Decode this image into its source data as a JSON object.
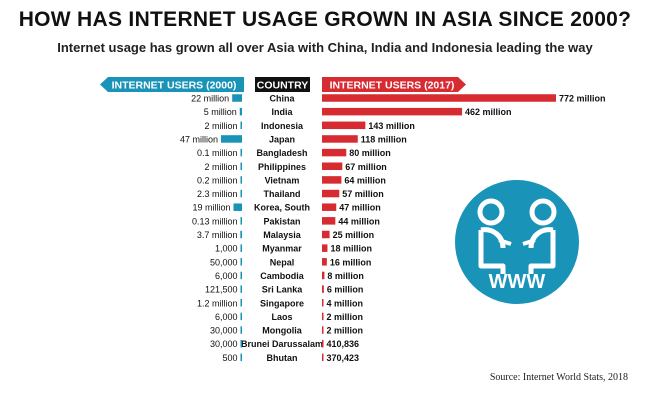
{
  "header": {
    "title": "HOW HAS INTERNET USAGE GROWN IN ASIA SINCE 2000?",
    "subtitle": "Internet usage has grown all over Asia with China, India and Indonesia leading the way"
  },
  "source": "Source: Internet World Stats, 2018",
  "colors": {
    "left_bars": "#1a93b8",
    "right_bars": "#d72b32",
    "country_header_bg": "#111111",
    "logo_circle": "#1a93b8"
  },
  "logo_text": "WWW",
  "chart_data": {
    "type": "bar",
    "headers": {
      "left": "INTERNET USERS (2000)",
      "center": "COUNTRY",
      "right": "INTERNET USERS (2017)"
    },
    "categories": [
      "China",
      "India",
      "Indonesia",
      "Japan",
      "Bangladesh",
      "Philippines",
      "Vietnam",
      "Thailand",
      "Korea, South",
      "Pakistan",
      "Malaysia",
      "Myanmar",
      "Nepal",
      "Cambodia",
      "Sri Lanka",
      "Singapore",
      "Laos",
      "Mongolia",
      "Brunei Darussalam",
      "Bhutan"
    ],
    "series": [
      {
        "name": "INTERNET USERS (2000)",
        "values": [
          22000000,
          5000000,
          2000000,
          47000000,
          100000,
          2000000,
          200000,
          2300000,
          19000000,
          130000,
          3700000,
          1000,
          50000,
          6000,
          121500,
          1200000,
          6000,
          30000,
          30000,
          500
        ],
        "labels": [
          "22 million",
          "5 million",
          "2 million",
          "47 million",
          "0.1 million",
          "2 million",
          "0.2 million",
          "2.3 million",
          "19 million",
          "0.13 million",
          "3.7 million",
          "1,000",
          "50,000",
          "6,000",
          "121,500",
          "1.2 million",
          "6,000",
          "30,000",
          "30,000",
          "500"
        ]
      },
      {
        "name": "INTERNET USERS (2017)",
        "values": [
          772000000,
          462000000,
          143000000,
          118000000,
          80000000,
          67000000,
          64000000,
          57000000,
          47000000,
          44000000,
          25000000,
          18000000,
          16000000,
          8000000,
          6000000,
          4000000,
          2000000,
          2000000,
          410836,
          370423
        ],
        "labels": [
          "772 million",
          "462 million",
          "143 million",
          "118 million",
          "80 million",
          "67 million",
          "64 million",
          "57 million",
          "47 million",
          "44 million",
          "25 million",
          "18 million",
          "16 million",
          "8 million",
          "6 million",
          "4 million",
          "2 million",
          "2 million",
          "410,836",
          "370,423"
        ]
      }
    ]
  }
}
